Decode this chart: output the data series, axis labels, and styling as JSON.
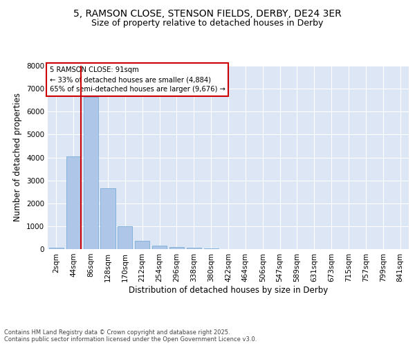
{
  "title_line1": "5, RAMSON CLOSE, STENSON FIELDS, DERBY, DE24 3ER",
  "title_line2": "Size of property relative to detached houses in Derby",
  "xlabel": "Distribution of detached houses by size in Derby",
  "ylabel": "Number of detached properties",
  "categories": [
    "2sqm",
    "44sqm",
    "86sqm",
    "128sqm",
    "170sqm",
    "212sqm",
    "254sqm",
    "296sqm",
    "338sqm",
    "380sqm",
    "422sqm",
    "464sqm",
    "506sqm",
    "547sqm",
    "589sqm",
    "631sqm",
    "673sqm",
    "715sqm",
    "757sqm",
    "799sqm",
    "841sqm"
  ],
  "bar_values": [
    50,
    4050,
    6650,
    2650,
    1000,
    350,
    150,
    100,
    50,
    20,
    10,
    0,
    0,
    0,
    0,
    0,
    0,
    0,
    0,
    0,
    0
  ],
  "bar_color": "#aec6e8",
  "bar_edgecolor": "#7aadd4",
  "ylim": [
    0,
    8000
  ],
  "yticks": [
    0,
    1000,
    2000,
    3000,
    4000,
    5000,
    6000,
    7000,
    8000
  ],
  "vline_x": 1.45,
  "vline_color": "#cc0000",
  "annotation_text": "5 RAMSON CLOSE: 91sqm\n← 33% of detached houses are smaller (4,884)\n65% of semi-detached houses are larger (9,676) →",
  "bg_color": "#ffffff",
  "plot_bg_color": "#dce6f5",
  "footer_line1": "Contains HM Land Registry data © Crown copyright and database right 2025.",
  "footer_line2": "Contains public sector information licensed under the Open Government Licence v3.0.",
  "grid_color": "#ffffff",
  "title_fontsize": 10,
  "subtitle_fontsize": 9,
  "tick_fontsize": 7.5,
  "label_fontsize": 8.5
}
